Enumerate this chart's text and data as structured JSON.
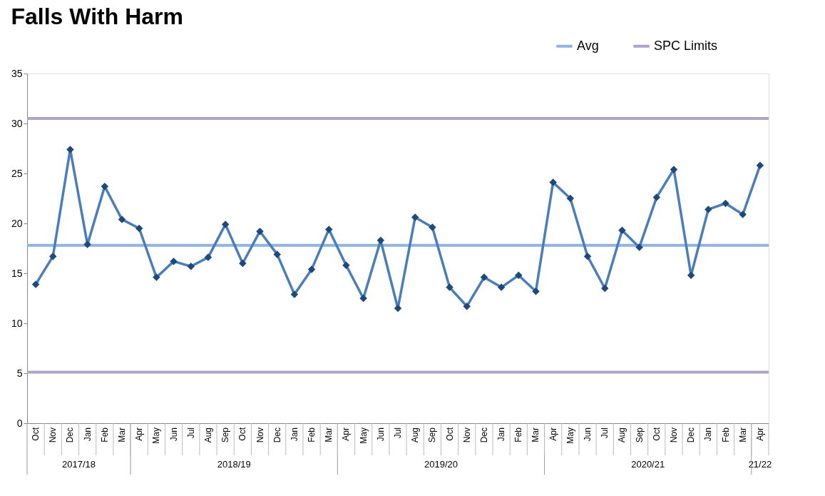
{
  "chart_data": {
    "type": "line",
    "title": "Falls With Harm",
    "categories": [
      "Oct",
      "Nov",
      "Dec",
      "Jan",
      "Feb",
      "Mar",
      "Apr",
      "May",
      "Jun",
      "Jul",
      "Aug",
      "Sep",
      "Oct",
      "Nov",
      "Dec",
      "Jan",
      "Feb",
      "Mar",
      "Apr",
      "May",
      "Jun",
      "Jul",
      "Aug",
      "Sep",
      "Oct",
      "Nov",
      "Dec",
      "Jan",
      "Feb",
      "Mar",
      "Apr",
      "May",
      "Jun",
      "Jul",
      "Aug",
      "Sep",
      "Oct",
      "Nov",
      "Dec",
      "Jan",
      "Feb",
      "Mar",
      "Apr"
    ],
    "series": [
      {
        "color": "#4a7ebb",
        "values": [
          13.9,
          16.7,
          27.4,
          17.9,
          23.7,
          20.4,
          19.5,
          14.6,
          16.2,
          15.7,
          16.6,
          19.9,
          16.0,
          19.2,
          16.9,
          12.9,
          15.4,
          19.4,
          15.8,
          12.5,
          18.3,
          11.5,
          20.6,
          19.6,
          13.6,
          11.7,
          14.6,
          13.6,
          14.8,
          13.2,
          24.1,
          22.5,
          16.7,
          13.5,
          19.3,
          17.6,
          22.6,
          25.4,
          14.8,
          21.4,
          22.0,
          20.9,
          25.8
        ]
      }
    ],
    "ylim": [
      0,
      35
    ],
    "yticks": [
      0,
      5,
      10,
      15,
      20,
      25,
      30,
      35
    ],
    "grid": false,
    "marker": "diamond",
    "line_style": "solid",
    "legend": "top right",
    "ref_lines": [
      {
        "axis": "y",
        "value": 17.8,
        "label": "Avg",
        "color": "#8eb4e3"
      },
      {
        "axis": "y",
        "value": 30.5,
        "label": "SPC Limits",
        "color": "#b3a2c7"
      },
      {
        "axis": "y",
        "value": 5.1,
        "color": "#b3a2c7"
      }
    ],
    "annotations": [
      "2017/18",
      "2018/19",
      "2019/20",
      "2020/21",
      "21/22"
    ]
  }
}
